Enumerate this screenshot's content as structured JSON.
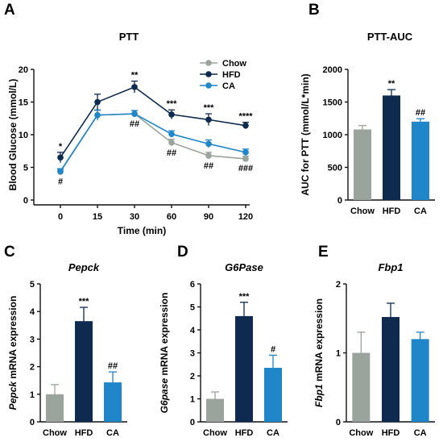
{
  "colors": {
    "chow": "#9aa39c",
    "hfd": "#0e2a4f",
    "ca": "#1f86c9"
  },
  "chart_data": [
    {
      "panel": "A",
      "type": "line",
      "title": "PTT",
      "xlabel": "Time (min)",
      "ylabel": "Blood Glucose (mmol/L)",
      "x": [
        0,
        15,
        30,
        60,
        90,
        120
      ],
      "ylim": [
        0,
        20
      ],
      "yticks": [
        0,
        5,
        10,
        15,
        20
      ],
      "legend_position": "top-right",
      "series": [
        {
          "name": "Chow",
          "color": "#9aa39c",
          "values": [
            4.3,
            13.0,
            13.2,
            8.8,
            6.8,
            6.3
          ],
          "errors": [
            0.4,
            0.7,
            0.5,
            0.5,
            0.5,
            0.4
          ]
        },
        {
          "name": "HFD",
          "color": "#0e2a4f",
          "values": [
            6.5,
            15.0,
            17.3,
            13.1,
            12.3,
            11.4
          ],
          "errors": [
            0.8,
            1.2,
            0.9,
            0.7,
            0.9,
            0.5
          ]
        },
        {
          "name": "CA",
          "color": "#1f86c9",
          "values": [
            4.4,
            13.0,
            13.2,
            10.1,
            8.6,
            7.3
          ],
          "errors": [
            0.4,
            0.8,
            0.5,
            0.5,
            0.6,
            0.5
          ]
        }
      ],
      "annotations_above": [
        "*",
        "",
        "**",
        "***",
        "***",
        "****"
      ],
      "annotations_below": [
        "#",
        "",
        "##",
        "##",
        "##",
        "###"
      ]
    },
    {
      "panel": "B",
      "type": "bar",
      "title": "PTT-AUC",
      "ylabel": "AUC for PTT (mmol/L*min)",
      "categories": [
        "Chow",
        "HFD",
        "CA"
      ],
      "values": [
        1080,
        1600,
        1200
      ],
      "errors": [
        60,
        90,
        45
      ],
      "ylim": [
        0,
        2000
      ],
      "yticks": [
        0,
        500,
        1000,
        1500,
        2000
      ],
      "annotations": [
        "",
        "**",
        "##"
      ]
    },
    {
      "panel": "C",
      "type": "bar",
      "title": "Pepck",
      "ylabel_italic": "Pepck",
      "ylabel_rest": " mRNA expression",
      "categories": [
        "Chow",
        "HFD",
        "CA"
      ],
      "values": [
        1.0,
        3.65,
        1.43
      ],
      "errors": [
        0.35,
        0.5,
        0.38
      ],
      "ylim": [
        0,
        5
      ],
      "yticks": [
        0,
        1,
        2,
        3,
        4,
        5
      ],
      "annotations": [
        "",
        "***",
        "##"
      ]
    },
    {
      "panel": "D",
      "type": "bar",
      "title": "G6Pase",
      "ylabel_italic": "G6pase",
      "ylabel_rest": " mRNA expression",
      "categories": [
        "Chow",
        "HFD",
        "CA"
      ],
      "values": [
        1.0,
        4.6,
        2.35
      ],
      "errors": [
        0.3,
        0.6,
        0.55
      ],
      "ylim": [
        0,
        6
      ],
      "yticks": [
        0,
        1,
        2,
        3,
        4,
        5,
        6
      ],
      "annotations": [
        "",
        "***",
        "#"
      ]
    },
    {
      "panel": "E",
      "type": "bar",
      "title": "Fbp1",
      "ylabel_italic": "Fbp1",
      "ylabel_rest": " mRNA expression",
      "categories": [
        "Chow",
        "HFD",
        "CA"
      ],
      "values": [
        1.0,
        1.52,
        1.2
      ],
      "errors": [
        0.3,
        0.2,
        0.1
      ],
      "ylim": [
        0,
        2
      ],
      "yticks": [
        0,
        1,
        2
      ],
      "annotations": [
        "",
        "",
        ""
      ]
    }
  ]
}
